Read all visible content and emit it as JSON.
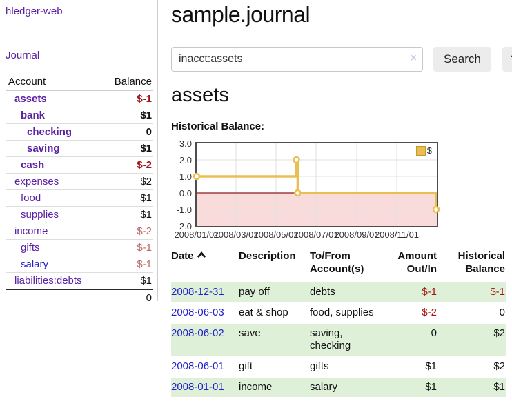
{
  "app": {
    "title": "hledger-web"
  },
  "colors": {
    "link_purple": "#5b21a3",
    "link_blue": "#2222cc",
    "negative_strong": "#a31515",
    "negative_muted": "#bd6868",
    "row_stripe_green": "#dff0d8",
    "chart_line_gold": "#e8bf50",
    "chart_negative_bg": "#f9dbdb",
    "chart_zero_line": "#8b1a1a"
  },
  "sidebar": {
    "journal_link": "Journal",
    "table": {
      "headers": {
        "account": "Account",
        "balance": "Balance"
      },
      "rows": [
        {
          "name": "assets",
          "balance": "$-1",
          "indent": 0,
          "bold": true,
          "name_color": "purple",
          "balance_style": "neg-strong"
        },
        {
          "name": "bank",
          "balance": "$1",
          "indent": 1,
          "bold": true,
          "name_color": "purple",
          "balance_style": "plain"
        },
        {
          "name": "checking",
          "balance": "0",
          "indent": 2,
          "bold": true,
          "name_color": "purple",
          "balance_style": "plain"
        },
        {
          "name": "saving",
          "balance": "$1",
          "indent": 2,
          "bold": true,
          "name_color": "purple",
          "balance_style": "plain"
        },
        {
          "name": "cash",
          "balance": "$-2",
          "indent": 1,
          "bold": true,
          "name_color": "purple",
          "balance_style": "neg-strong"
        },
        {
          "name": "expenses",
          "balance": "$2",
          "indent": 0,
          "bold": false,
          "name_color": "purple",
          "balance_style": "plain"
        },
        {
          "name": "food",
          "balance": "$1",
          "indent": 1,
          "bold": false,
          "name_color": "purple",
          "balance_style": "plain"
        },
        {
          "name": "supplies",
          "balance": "$1",
          "indent": 1,
          "bold": false,
          "name_color": "purple",
          "balance_style": "plain"
        },
        {
          "name": "income",
          "balance": "$-2",
          "indent": 0,
          "bold": false,
          "name_color": "purple",
          "balance_style": "neg-muted"
        },
        {
          "name": "gifts",
          "balance": "$-1",
          "indent": 1,
          "bold": false,
          "name_color": "purple",
          "balance_style": "neg-muted"
        },
        {
          "name": "salary",
          "balance": "$-1",
          "indent": 1,
          "bold": false,
          "name_color": "blue",
          "balance_style": "neg-muted"
        },
        {
          "name": "liabilities:debts",
          "balance": "$1",
          "indent": 0,
          "bold": false,
          "name_color": "purple",
          "balance_style": "plain"
        }
      ],
      "total": "0"
    }
  },
  "header": {
    "title": "sample.journal"
  },
  "search": {
    "value": "inacct:assets",
    "clear_icon": "×",
    "button_label": "Search",
    "help_label": "?"
  },
  "account_page": {
    "heading": "assets",
    "chart_title": "Historical Balance:"
  },
  "chart_data": {
    "type": "line",
    "title": "Historical Balance",
    "step": true,
    "series": [
      {
        "name": "$",
        "color": "#e8bf50",
        "points": [
          {
            "date": "2008-01-01",
            "value": 1
          },
          {
            "date": "2008-06-01",
            "value": 2
          },
          {
            "date": "2008-06-03",
            "value": 0
          },
          {
            "date": "2008-12-31",
            "value": -1
          }
        ]
      }
    ],
    "x_ticks": [
      "2008/01/01",
      "2008/03/01",
      "2008/05/01",
      "2008/07/01",
      "2008/09/01",
      "2008/11/01"
    ],
    "y_ticks": [
      "3.0",
      "2.0",
      "1.0",
      "0.0",
      "-1.0",
      "-2.0"
    ],
    "ylim": [
      -2.0,
      3.0
    ],
    "x_range": [
      "2008-01-01",
      "2009-01-01"
    ],
    "legend": {
      "label": "$",
      "position": "top-right"
    },
    "negative_region_color": "#f9dbdb",
    "zero_line_color": "#8b1a1a",
    "grid": true
  },
  "register": {
    "columns": [
      {
        "label": "Date",
        "sort": "asc"
      },
      {
        "label": "Description"
      },
      {
        "label": "To/From Account(s)"
      },
      {
        "label": "Amount Out/In"
      },
      {
        "label": "Historical Balance"
      }
    ],
    "rows": [
      {
        "date": "2008-12-31",
        "description": "pay off",
        "accounts": "debts",
        "amount": "$-1",
        "balance": "$-1"
      },
      {
        "date": "2008-06-03",
        "description": "eat & shop",
        "accounts": "food, supplies",
        "amount": "$-2",
        "balance": "0"
      },
      {
        "date": "2008-06-02",
        "description": "save",
        "accounts": "saving, checking",
        "amount": "0",
        "balance": "$2"
      },
      {
        "date": "2008-06-01",
        "description": "gift",
        "accounts": "gifts",
        "amount": "$1",
        "balance": "$2"
      },
      {
        "date": "2008-01-01",
        "description": "income",
        "accounts": "salary",
        "amount": "$1",
        "balance": "$1"
      }
    ]
  }
}
